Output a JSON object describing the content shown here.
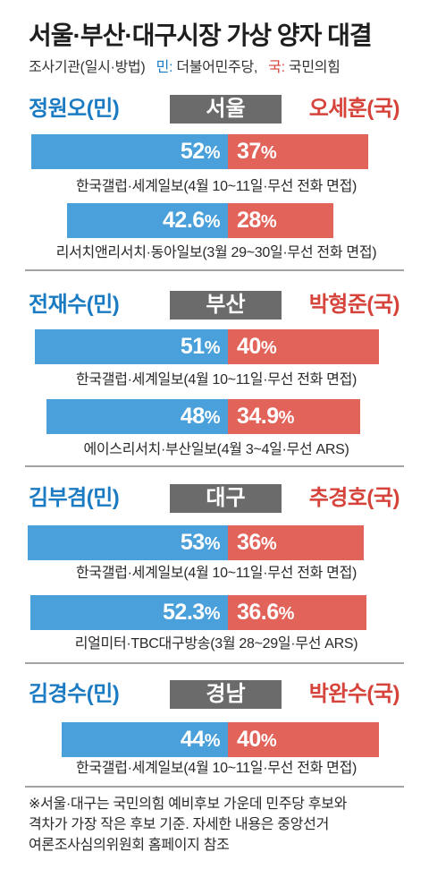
{
  "colors": {
    "dem_text": "#1a7bc3",
    "dem_bar": "#4aa0da",
    "ppp_text": "#d6433b",
    "ppp_bar": "#e2635a",
    "region_box": "#6b6b6b",
    "divider": "#a2a2a2"
  },
  "chart_data": {
    "type": "bar",
    "title": "서울·부산·대구시장 가상 양자 대결",
    "legend": {
      "source_label": "조사기관(일시·방법)",
      "dem_key": "민:",
      "dem_party": "더불어민주당,",
      "ppp_key": "국:",
      "ppp_party": "국민의힘"
    },
    "unit": "%",
    "regions": [
      {
        "region": "서울",
        "dem_candidate": "정원오(민)",
        "ppp_candidate": "오세훈(국)",
        "polls": [
          {
            "dem": 52,
            "ppp": 37,
            "source": "한국갤럽·세계일보(4월 10~11일·무선 전화 면접)"
          },
          {
            "dem": 42.6,
            "ppp": 28,
            "source": "리서치앤리서치·동아일보(3월 29~30일·무선 전화 면접)"
          }
        ]
      },
      {
        "region": "부산",
        "dem_candidate": "전재수(민)",
        "ppp_candidate": "박형준(국)",
        "polls": [
          {
            "dem": 51,
            "ppp": 40,
            "source": "한국갤럽·세계일보(4월 10~11일·무선 전화 면접)"
          },
          {
            "dem": 48,
            "ppp": 34.9,
            "source": "에이스리서치·부산일보(4월 3~4일·무선 ARS)"
          }
        ]
      },
      {
        "region": "대구",
        "dem_candidate": "김부겸(민)",
        "ppp_candidate": "추경호(국)",
        "polls": [
          {
            "dem": 53,
            "ppp": 36,
            "source": "한국갤럽·세계일보(4월 10~11일·무선 전화 면접)"
          },
          {
            "dem": 52.3,
            "ppp": 36.6,
            "source": "리얼미터·TBC대구방송(3월 28~29일·무선 ARS)"
          }
        ]
      },
      {
        "region": "경남",
        "dem_candidate": "김경수(민)",
        "ppp_candidate": "박완수(국)",
        "polls": [
          {
            "dem": 44,
            "ppp": 40,
            "source": "한국갤럽·세계일보(4월 10~11일·무선 전화 면접)"
          }
        ]
      }
    ],
    "footnote": [
      "※서울·대구는 국민의힘 예비후보 가운데 민주당 후보와",
      "격차가 가장 작은 후보 기준. 자세한 내용은 중앙선거",
      "여론조사심의위원회 홈페이지 참조"
    ]
  }
}
